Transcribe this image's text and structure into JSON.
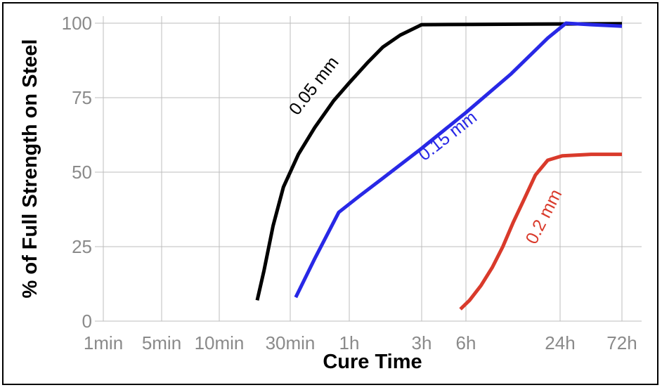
{
  "chart_data": {
    "type": "line",
    "xlabel": "Cure Time",
    "ylabel": "% of Full Strength on Steel",
    "x_scale": "log",
    "x_unit": "minutes",
    "x_ticks": [
      {
        "label": "1min",
        "value": 1
      },
      {
        "label": "5min",
        "value": 5
      },
      {
        "label": "10min",
        "value": 10
      },
      {
        "label": "30min",
        "value": 30
      },
      {
        "label": "1h",
        "value": 60
      },
      {
        "label": "3h",
        "value": 180
      },
      {
        "label": "6h",
        "value": 360
      },
      {
        "label": "24h",
        "value": 1440
      },
      {
        "label": "72h",
        "value": 4320
      }
    ],
    "y_ticks": [
      "0",
      "25",
      "50",
      "75",
      "100"
    ],
    "ylim": [
      0,
      100
    ],
    "grid": true,
    "series": [
      {
        "name": "0.05 mm",
        "color": "#000000",
        "points": [
          [
            18,
            7
          ],
          [
            20,
            17
          ],
          [
            23,
            32
          ],
          [
            27,
            45
          ],
          [
            33,
            56
          ],
          [
            40,
            65
          ],
          [
            50,
            74
          ],
          [
            60,
            80
          ],
          [
            80,
            87
          ],
          [
            100,
            92
          ],
          [
            130,
            96
          ],
          [
            180,
            99.5
          ],
          [
            400,
            99.6
          ],
          [
            1000,
            99.7
          ],
          [
            4320,
            99.8
          ]
        ]
      },
      {
        "name": "0.15 mm",
        "color": "#2828e6",
        "points": [
          [
            32,
            8
          ],
          [
            40,
            21
          ],
          [
            53,
            36.5
          ],
          [
            70,
            42
          ],
          [
            100,
            48
          ],
          [
            180,
            58
          ],
          [
            360,
            70
          ],
          [
            700,
            83
          ],
          [
            1200,
            95
          ],
          [
            1600,
            100
          ],
          [
            2500,
            99.5
          ],
          [
            4320,
            99
          ]
        ]
      },
      {
        "name": "0.2 mm",
        "color": "#d93a2b",
        "points": [
          [
            330,
            4
          ],
          [
            380,
            7
          ],
          [
            450,
            12
          ],
          [
            530,
            18
          ],
          [
            620,
            25
          ],
          [
            720,
            33
          ],
          [
            850,
            41
          ],
          [
            1000,
            49
          ],
          [
            1200,
            54
          ],
          [
            1500,
            55.5
          ],
          [
            2500,
            56
          ],
          [
            4320,
            56
          ]
        ]
      }
    ]
  }
}
